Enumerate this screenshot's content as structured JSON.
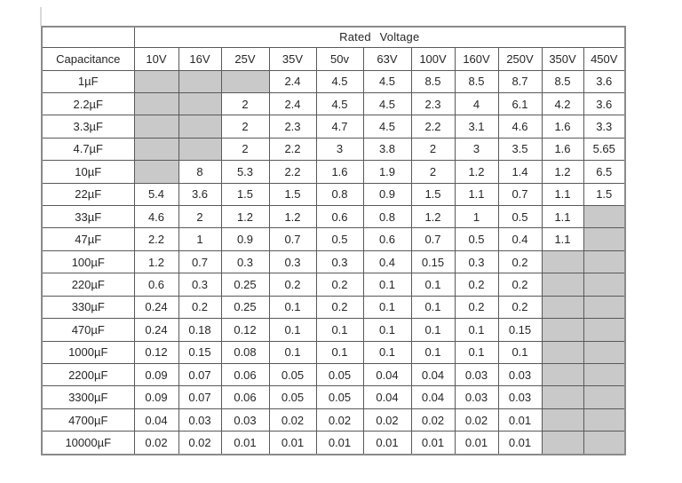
{
  "chart_data": {
    "type": "table",
    "title": "Rated Voltage",
    "row_header": "Capacitance",
    "columns": [
      "10V",
      "16V",
      "25V",
      "35V",
      "50v",
      "63V",
      "100V",
      "160V",
      "250V",
      "350V",
      "450V"
    ],
    "rows": [
      {
        "label": "1µF",
        "values": [
          null,
          null,
          null,
          "2.4",
          "4.5",
          "4.5",
          "8.5",
          "8.5",
          "8.7",
          "8.5",
          "3.6"
        ]
      },
      {
        "label": "2.2µF",
        "values": [
          null,
          null,
          "2",
          "2.4",
          "4.5",
          "4.5",
          "2.3",
          "4",
          "6.1",
          "4.2",
          "3.6"
        ]
      },
      {
        "label": "3.3µF",
        "values": [
          null,
          null,
          "2",
          "2.3",
          "4.7",
          "4.5",
          "2.2",
          "3.1",
          "4.6",
          "1.6",
          "3.3"
        ]
      },
      {
        "label": "4.7µF",
        "values": [
          null,
          null,
          "2",
          "2.2",
          "3",
          "3.8",
          "2",
          "3",
          "3.5",
          "1.6",
          "5.65"
        ]
      },
      {
        "label": "10µF",
        "values": [
          null,
          "8",
          "5.3",
          "2.2",
          "1.6",
          "1.9",
          "2",
          "1.2",
          "1.4",
          "1.2",
          "6.5"
        ]
      },
      {
        "label": "22µF",
        "values": [
          "5.4",
          "3.6",
          "1.5",
          "1.5",
          "0.8",
          "0.9",
          "1.5",
          "1.1",
          "0.7",
          "1.1",
          "1.5"
        ]
      },
      {
        "label": "33µF",
        "values": [
          "4.6",
          "2",
          "1.2",
          "1.2",
          "0.6",
          "0.8",
          "1.2",
          "1",
          "0.5",
          "1.1",
          null
        ]
      },
      {
        "label": "47µF",
        "values": [
          "2.2",
          "1",
          "0.9",
          "0.7",
          "0.5",
          "0.6",
          "0.7",
          "0.5",
          "0.4",
          "1.1",
          null
        ]
      },
      {
        "label": "100µF",
        "values": [
          "1.2",
          "0.7",
          "0.3",
          "0.3",
          "0.3",
          "0.4",
          "0.15",
          "0.3",
          "0.2",
          null,
          null
        ]
      },
      {
        "label": "220µF",
        "values": [
          "0.6",
          "0.3",
          "0.25",
          "0.2",
          "0.2",
          "0.1",
          "0.1",
          "0.2",
          "0.2",
          null,
          null
        ]
      },
      {
        "label": "330µF",
        "values": [
          "0.24",
          "0.2",
          "0.25",
          "0.1",
          "0.2",
          "0.1",
          "0.1",
          "0.2",
          "0.2",
          null,
          null
        ]
      },
      {
        "label": "470µF",
        "values": [
          "0.24",
          "0.18",
          "0.12",
          "0.1",
          "0.1",
          "0.1",
          "0.1",
          "0.1",
          "0.15",
          null,
          null
        ]
      },
      {
        "label": "1000µF",
        "values": [
          "0.12",
          "0.15",
          "0.08",
          "0.1",
          "0.1",
          "0.1",
          "0.1",
          "0.1",
          "0.1",
          null,
          null
        ]
      },
      {
        "label": "2200µF",
        "values": [
          "0.09",
          "0.07",
          "0.06",
          "0.05",
          "0.05",
          "0.04",
          "0.04",
          "0.03",
          "0.03",
          null,
          null
        ]
      },
      {
        "label": "3300µF",
        "values": [
          "0.09",
          "0.07",
          "0.06",
          "0.05",
          "0.05",
          "0.04",
          "0.04",
          "0.03",
          "0.03",
          null,
          null
        ]
      },
      {
        "label": "4700µF",
        "values": [
          "0.04",
          "0.03",
          "0.03",
          "0.02",
          "0.02",
          "0.02",
          "0.02",
          "0.02",
          "0.01",
          null,
          null
        ]
      },
      {
        "label": "10000µF",
        "values": [
          "0.02",
          "0.02",
          "0.01",
          "0.01",
          "0.01",
          "0.01",
          "0.01",
          "0.01",
          "0.01",
          null,
          null
        ]
      }
    ]
  },
  "colors": {
    "background": "#ffffff",
    "shaded_cell": "#c9c9c9",
    "grid_border": "#595959",
    "outer_border": "#8a8a8a",
    "text": "#262626"
  }
}
